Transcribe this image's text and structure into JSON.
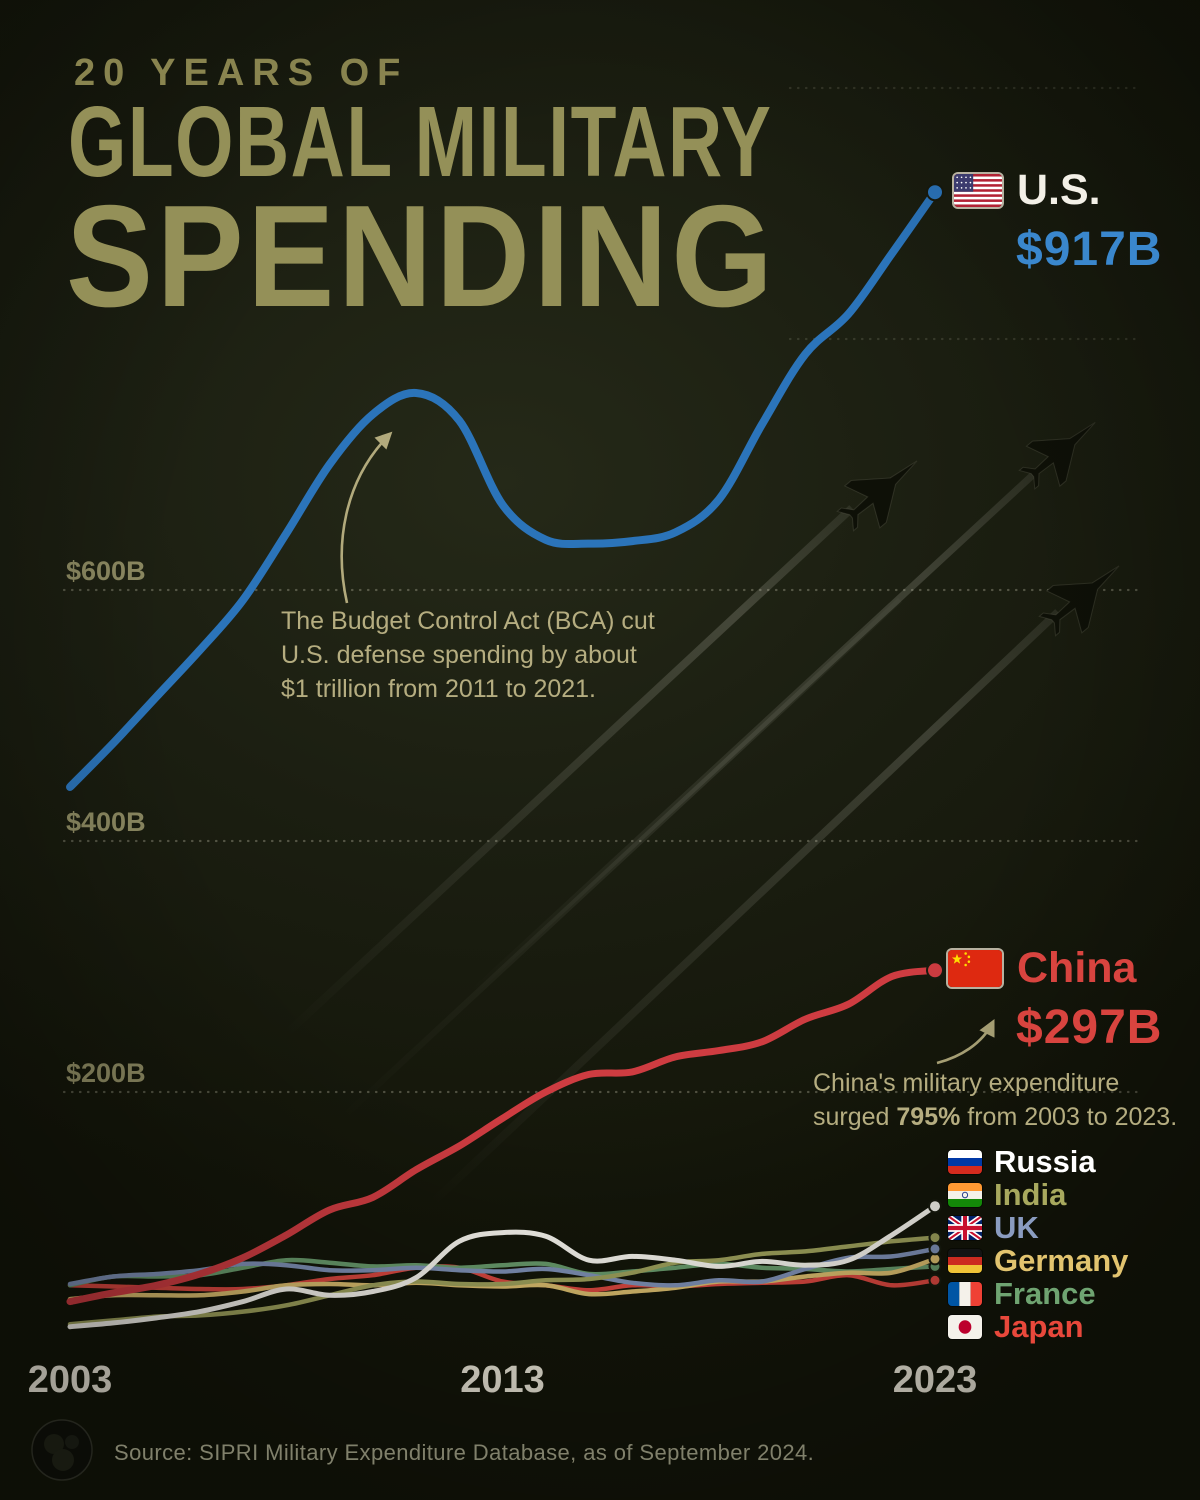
{
  "title": {
    "eyebrow": "20 YEARS OF",
    "line1": "GLOBAL MILITARY",
    "line2": "SPENDING"
  },
  "theme": {
    "background": "#1b1e11",
    "title_color": "#949058",
    "annotation_color": "#b5ad80",
    "grid_label_color": "#8d8a62",
    "axis_label_color": "#ebe7d8",
    "source_color": "#80806b",
    "us_accent": "#3a87cd",
    "china_accent": "#d8443f"
  },
  "callouts": {
    "us": {
      "label": "U.S.",
      "value": "$917B"
    },
    "china": {
      "label": "China",
      "value": "$297B"
    }
  },
  "annotations": {
    "bca": {
      "lines": [
        "The Budget Control Act (BCA) cut",
        "U.S. defense spending by about",
        "$1 trillion from 2011 to 2021."
      ]
    },
    "china": {
      "line1": "China's military expenditure",
      "line2_pre": "surged ",
      "line2_bold": "795%",
      "line2_post": " from 2003 to 2023."
    }
  },
  "legend": {
    "items": [
      {
        "id": "russia",
        "label": "Russia",
        "color": "#ffffff"
      },
      {
        "id": "india",
        "label": "India",
        "color": "#a8a95e"
      },
      {
        "id": "uk",
        "label": "UK",
        "color": "#8a9cc0"
      },
      {
        "id": "germany",
        "label": "Germany",
        "color": "#e2c46f"
      },
      {
        "id": "france",
        "label": "France",
        "color": "#6fa471"
      },
      {
        "id": "japan",
        "label": "Japan",
        "color": "#e8483b"
      }
    ]
  },
  "footer": {
    "source": "Source: SIPRI Military Expenditure Database, as of September 2024."
  },
  "chart_data": {
    "type": "line",
    "title": "20 Years of Global Military Spending",
    "unit": "US$ billions",
    "xlim": [
      2003,
      2023
    ],
    "ylim": [
      0,
      1000
    ],
    "grid": "dotted-horizontal",
    "legend_position": "bottom-right",
    "x": [
      2003,
      2004,
      2005,
      2006,
      2007,
      2008,
      2009,
      2010,
      2011,
      2012,
      2013,
      2014,
      2015,
      2016,
      2017,
      2018,
      2019,
      2020,
      2021,
      2022,
      2023
    ],
    "x_ticks": [
      2003,
      2013,
      2023
    ],
    "x_tick_labels": [
      "2003",
      "2013",
      "2023"
    ],
    "gridlines": [
      {
        "value": 200,
        "label": "$200B",
        "full": true
      },
      {
        "value": 400,
        "label": "$400B",
        "full": true
      },
      {
        "value": 600,
        "label": "$600B",
        "full": true
      },
      {
        "value": 800,
        "label": "",
        "full": false
      },
      {
        "value": 1000,
        "label": "",
        "full": false
      }
    ],
    "series": [
      {
        "id": "us",
        "name": "U.S.",
        "color": "#2b74ba",
        "stroke_width": 8,
        "dot_radius": 8,
        "values": [
          443,
          478,
          515,
          552,
          592,
          645,
          700,
          740,
          757,
          735,
          668,
          640,
          637,
          639,
          646,
          672,
          732,
          788,
          820,
          868,
          917
        ]
      },
      {
        "id": "china",
        "name": "China",
        "color": "#ce3c41",
        "stroke_width": 7,
        "dot_radius": 8,
        "values": [
          33,
          40,
          46,
          55,
          68,
          86,
          106,
          116,
          138,
          157,
          179,
          200,
          214,
          216,
          228,
          233,
          240,
          258,
          270,
          292,
          297
        ]
      },
      {
        "id": "russia",
        "name": "Russia",
        "color": "#f3f1ea",
        "stroke_width": 5,
        "dot_radius": 6,
        "values": [
          13,
          16,
          20,
          25,
          33,
          43,
          38,
          41,
          52,
          81,
          88,
          85,
          66,
          69,
          66,
          61,
          65,
          62,
          66,
          86,
          109
        ]
      },
      {
        "id": "india",
        "name": "India",
        "color": "#9da05b",
        "stroke_width": 4.5,
        "dot_radius": 5.5,
        "values": [
          15,
          18,
          21,
          22,
          25,
          30,
          38,
          46,
          49,
          47,
          47,
          50,
          51,
          56,
          64,
          66,
          71,
          73,
          77,
          81,
          84
        ]
      },
      {
        "id": "uk",
        "name": "UK",
        "color": "#7e90b5",
        "stroke_width": 4.5,
        "dot_radius": 5.5,
        "values": [
          47,
          53,
          55,
          58,
          63,
          62,
          58,
          58,
          60,
          58,
          57,
          59,
          54,
          48,
          46,
          50,
          49,
          59,
          68,
          69,
          75
        ]
      },
      {
        "id": "germany",
        "name": "Germany",
        "color": "#d9bc6d",
        "stroke_width": 4.5,
        "dot_radius": 5.5,
        "values": [
          35,
          38,
          38,
          38,
          41,
          46,
          47,
          46,
          48,
          46,
          45,
          46,
          39,
          41,
          44,
          49,
          49,
          53,
          56,
          56,
          67
        ]
      },
      {
        "id": "france",
        "name": "France",
        "color": "#689a6b",
        "stroke_width": 4.5,
        "dot_radius": 5.5,
        "values": [
          46,
          53,
          53,
          54,
          60,
          66,
          64,
          61,
          62,
          60,
          62,
          63,
          55,
          57,
          60,
          63,
          60,
          59,
          57,
          59,
          61
        ]
      },
      {
        "id": "japan",
        "name": "Japan",
        "color": "#d9473f",
        "stroke_width": 4.5,
        "dot_radius": 5.5,
        "values": [
          46,
          45,
          44,
          43,
          43,
          46,
          51,
          54,
          60,
          60,
          49,
          46,
          42,
          46,
          45,
          47,
          48,
          49,
          54,
          46,
          50
        ]
      }
    ]
  }
}
